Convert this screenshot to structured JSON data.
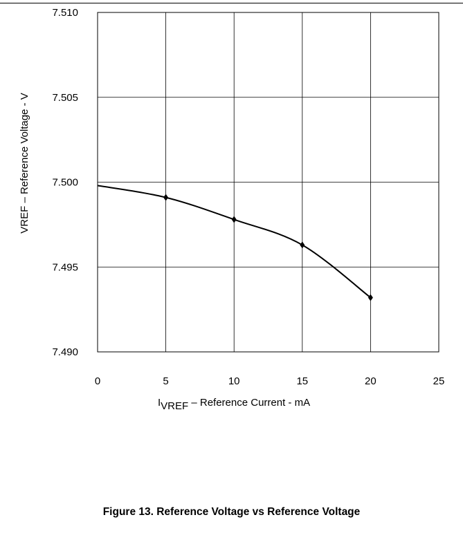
{
  "chart_data": {
    "type": "line",
    "title": "Figure 13. Reference Voltage vs Reference Voltage",
    "xlabel": {
      "prefix": "I",
      "subscript": "VREF",
      "suffix": " – Reference Current - mA"
    },
    "ylabel": "VREF – Reference Voltage - V",
    "xlim": [
      0,
      25
    ],
    "ylim": [
      7.49,
      7.51
    ],
    "xticks": [
      "0",
      "5",
      "10",
      "15",
      "20",
      "25"
    ],
    "yticks": [
      "7.490",
      "7.495",
      "7.500",
      "7.505",
      "7.510"
    ],
    "grid": true,
    "series": [
      {
        "x": [
          0,
          5,
          10,
          15,
          20
        ],
        "y": [
          7.4998,
          7.4991,
          7.4978,
          7.4963,
          7.4932
        ],
        "marker": "diamond",
        "color": "#000000"
      }
    ]
  }
}
